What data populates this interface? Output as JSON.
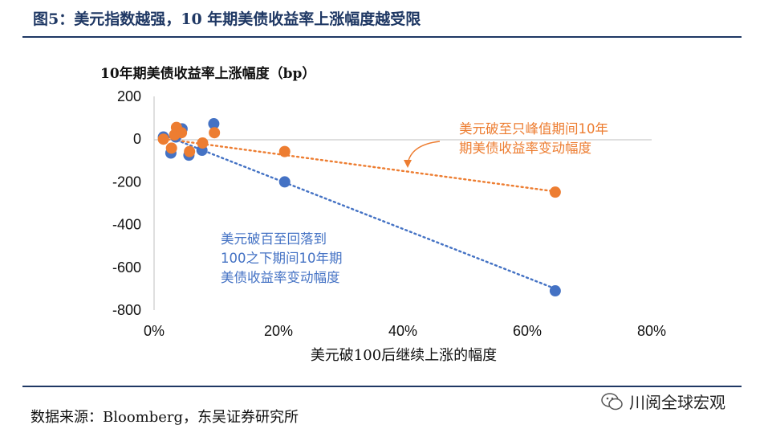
{
  "figure": {
    "title": "图5：美元指数越强，10 年期美债收益率上涨幅度越受限",
    "source": "数据来源：Bloomberg，东吴证券研究所",
    "watermark": "川阅全球宏观"
  },
  "colors": {
    "title": "#1f3864",
    "blue_series": "#4472c4",
    "orange_series": "#ed7d31",
    "axis": "#bfbfbf"
  },
  "chart_data": {
    "type": "scatter",
    "ylabel": "10年期美债收益率上涨幅度（bp）",
    "xlabel": "美元破100后继续上涨的幅度",
    "xlim": [
      0,
      0.8
    ],
    "ylim": [
      -800,
      200
    ],
    "x_ticks": [
      {
        "value": 0,
        "label": "0%"
      },
      {
        "value": 0.2,
        "label": "20%"
      },
      {
        "value": 0.4,
        "label": "40%"
      },
      {
        "value": 0.6,
        "label": "60%"
      },
      {
        "value": 0.8,
        "label": "80%"
      }
    ],
    "y_ticks": [
      {
        "value": 200,
        "label": "200"
      },
      {
        "value": 0,
        "label": "0"
      },
      {
        "value": -200,
        "label": "-200"
      },
      {
        "value": -400,
        "label": "-400"
      },
      {
        "value": -600,
        "label": "-600"
      },
      {
        "value": -800,
        "label": "-800"
      }
    ],
    "grid": false,
    "series": [
      {
        "key": "blue",
        "name": "美元破百至回落到100之下期间10年期美债收益率变动幅度",
        "color": "#4472c4",
        "points": [
          {
            "x": 0.015,
            "y": 10
          },
          {
            "x": 0.027,
            "y": -65
          },
          {
            "x": 0.035,
            "y": 10
          },
          {
            "x": 0.045,
            "y": 48
          },
          {
            "x": 0.056,
            "y": -75
          },
          {
            "x": 0.077,
            "y": -52
          },
          {
            "x": 0.096,
            "y": 72
          },
          {
            "x": 0.21,
            "y": -200
          },
          {
            "x": 0.645,
            "y": -710
          }
        ],
        "trend": [
          {
            "x": 0.015,
            "y": 20
          },
          {
            "x": 0.645,
            "y": -700
          }
        ]
      },
      {
        "key": "orange",
        "name": "美元破至只峰值期间10年期美债收益率变动幅度",
        "color": "#ed7d31",
        "points": [
          {
            "x": 0.015,
            "y": 0
          },
          {
            "x": 0.028,
            "y": -42
          },
          {
            "x": 0.033,
            "y": 20
          },
          {
            "x": 0.036,
            "y": 55
          },
          {
            "x": 0.044,
            "y": 30
          },
          {
            "x": 0.057,
            "y": -58
          },
          {
            "x": 0.078,
            "y": -18
          },
          {
            "x": 0.097,
            "y": 30
          },
          {
            "x": 0.21,
            "y": -58
          },
          {
            "x": 0.645,
            "y": -248
          }
        ],
        "trend": [
          {
            "x": 0.015,
            "y": 2
          },
          {
            "x": 0.645,
            "y": -245
          }
        ]
      }
    ],
    "annotations": [
      {
        "series": "blue",
        "lines": [
          "美元破百至回落到",
          "100之下期间10年期",
          "美债收益率变动幅度"
        ]
      },
      {
        "series": "orange",
        "lines": [
          "美元破至只峰值期间10年",
          "期美债收益率变动幅度"
        ]
      }
    ]
  }
}
